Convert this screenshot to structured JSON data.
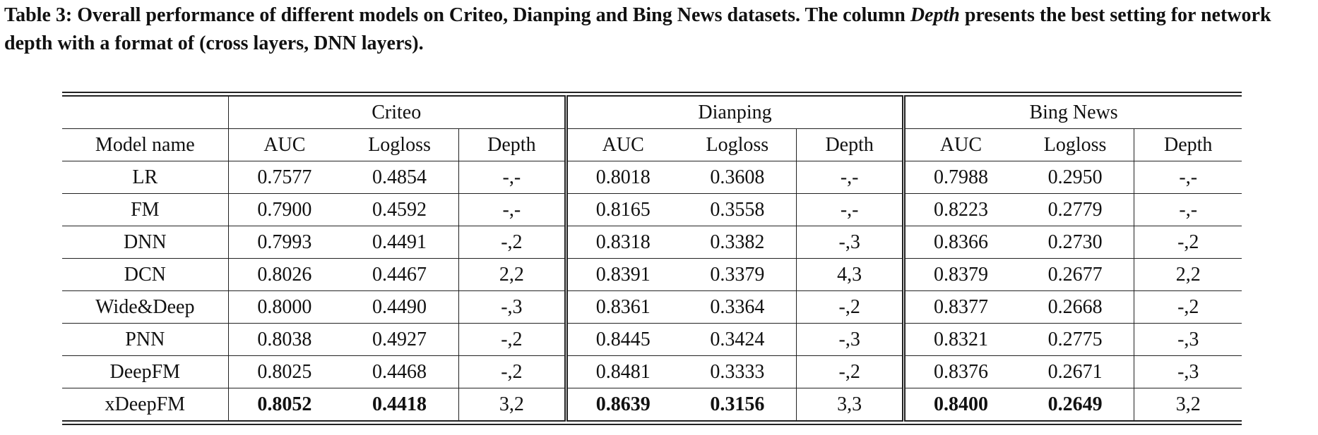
{
  "caption": {
    "lead": "Table 3: Overall performance of different models on Criteo, Dianping and Bing News datasets. The column ",
    "emph": "Depth",
    "tail": " presents the best setting for network depth with a format of (cross layers, DNN layers)."
  },
  "table": {
    "datasets": [
      "Criteo",
      "Dianping",
      "Bing News"
    ],
    "model_header": "Model name",
    "metric_headers": [
      "AUC",
      "Logloss",
      "Depth"
    ],
    "rows": [
      {
        "model": "LR",
        "cells": [
          "0.7577",
          "0.4854",
          "-,-",
          "0.8018",
          "0.3608",
          "-,-",
          "0.7988",
          "0.2950",
          "-,-"
        ]
      },
      {
        "model": "FM",
        "cells": [
          "0.7900",
          "0.4592",
          "-,-",
          "0.8165",
          "0.3558",
          "-,-",
          "0.8223",
          "0.2779",
          "-,-"
        ]
      },
      {
        "model": "DNN",
        "cells": [
          "0.7993",
          "0.4491",
          "-,2",
          "0.8318",
          "0.3382",
          "-,3",
          "0.8366",
          "0.2730",
          "-,2"
        ]
      },
      {
        "model": "DCN",
        "cells": [
          "0.8026",
          "0.4467",
          "2,2",
          "0.8391",
          "0.3379",
          "4,3",
          "0.8379",
          "0.2677",
          "2,2"
        ]
      },
      {
        "model": "Wide&Deep",
        "cells": [
          "0.8000",
          "0.4490",
          "-,3",
          "0.8361",
          "0.3364",
          "-,2",
          "0.8377",
          "0.2668",
          "-,2"
        ]
      },
      {
        "model": "PNN",
        "cells": [
          "0.8038",
          "0.4927",
          "-,2",
          "0.8445",
          "0.3424",
          "-,3",
          "0.8321",
          "0.2775",
          "-,3"
        ]
      },
      {
        "model": "DeepFM",
        "cells": [
          "0.8025",
          "0.4468",
          "-,2",
          "0.8481",
          "0.3333",
          "-,2",
          "0.8376",
          "0.2671",
          "-,3"
        ]
      },
      {
        "model": "xDeepFM",
        "cells": [
          "0.8052",
          "0.4418",
          "3,2",
          "0.8639",
          "0.3156",
          "3,3",
          "0.8400",
          "0.2649",
          "3,2"
        ]
      }
    ]
  }
}
